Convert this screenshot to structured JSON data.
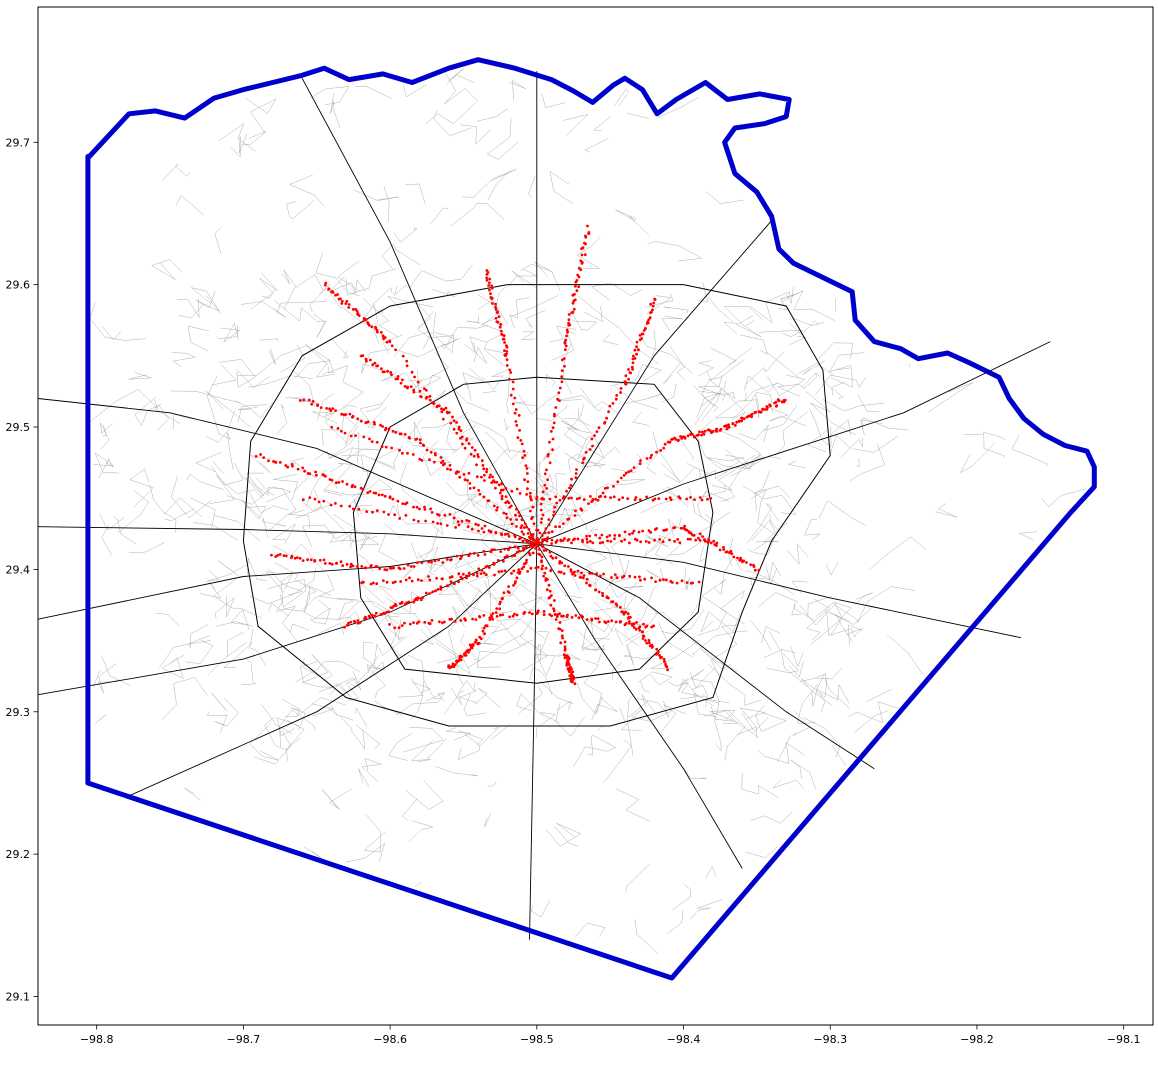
{
  "chart_data": {
    "type": "scatter",
    "title": "",
    "xlabel": "",
    "ylabel": "",
    "xlim": [
      -98.84,
      -98.08
    ],
    "ylim": [
      29.08,
      29.795
    ],
    "x_ticks": [
      -98.8,
      -98.7,
      -98.6,
      -98.5,
      -98.4,
      -98.3,
      -98.2,
      -98.1
    ],
    "x_tick_labels": [
      "−98.8",
      "−98.7",
      "−98.6",
      "−98.5",
      "−98.4",
      "−98.3",
      "−98.2",
      "−98.1"
    ],
    "y_ticks": [
      29.1,
      29.2,
      29.3,
      29.4,
      29.5,
      29.6,
      29.7
    ],
    "y_tick_labels": [
      "29.1",
      "29.2",
      "29.3",
      "29.4",
      "29.5",
      "29.6",
      "29.7"
    ],
    "grid": false,
    "colors": {
      "county_boundary": "#0000cc",
      "road_network": "#000000",
      "minor_roads": "#9a9a9a",
      "points": "#ff0000"
    },
    "boundary": [
      [
        -98.805,
        29.69
      ],
      [
        -98.778,
        29.72
      ],
      [
        -98.76,
        29.722
      ],
      [
        -98.74,
        29.717
      ],
      [
        -98.72,
        29.731
      ],
      [
        -98.7,
        29.737
      ],
      [
        -98.68,
        29.742
      ],
      [
        -98.66,
        29.747
      ],
      [
        -98.645,
        29.752
      ],
      [
        -98.628,
        29.744
      ],
      [
        -98.605,
        29.748
      ],
      [
        -98.585,
        29.742
      ],
      [
        -98.56,
        29.752
      ],
      [
        -98.54,
        29.758
      ],
      [
        -98.515,
        29.752
      ],
      [
        -98.49,
        29.744
      ],
      [
        -98.475,
        29.736
      ],
      [
        -98.462,
        29.728
      ],
      [
        -98.448,
        29.74
      ],
      [
        -98.44,
        29.745
      ],
      [
        -98.428,
        29.737
      ],
      [
        -98.418,
        29.72
      ],
      [
        -98.405,
        29.73
      ],
      [
        -98.385,
        29.742
      ],
      [
        -98.37,
        29.73
      ],
      [
        -98.348,
        29.734
      ],
      [
        -98.328,
        29.73
      ],
      [
        -98.33,
        29.718
      ],
      [
        -98.345,
        29.713
      ],
      [
        -98.365,
        29.71
      ],
      [
        -98.372,
        29.7
      ],
      [
        -98.365,
        29.678
      ],
      [
        -98.35,
        29.665
      ],
      [
        -98.34,
        29.648
      ],
      [
        -98.335,
        29.625
      ],
      [
        -98.325,
        29.615
      ],
      [
        -98.305,
        29.605
      ],
      [
        -98.285,
        29.595
      ],
      [
        -98.283,
        29.575
      ],
      [
        -98.27,
        29.56
      ],
      [
        -98.252,
        29.555
      ],
      [
        -98.24,
        29.548
      ],
      [
        -98.22,
        29.552
      ],
      [
        -98.205,
        29.545
      ],
      [
        -98.185,
        29.535
      ],
      [
        -98.178,
        29.52
      ],
      [
        -98.168,
        29.506
      ],
      [
        -98.155,
        29.495
      ],
      [
        -98.14,
        29.487
      ],
      [
        -98.125,
        29.483
      ],
      [
        -98.12,
        29.472
      ],
      [
        -98.12,
        29.458
      ],
      [
        -98.136,
        29.44
      ],
      [
        -98.408,
        29.113
      ],
      [
        -98.806,
        29.25
      ],
      [
        -98.806,
        29.69
      ]
    ],
    "major_roads": [
      [
        [
          -98.84,
          29.312
        ],
        [
          -98.7,
          29.337
        ],
        [
          -98.6,
          29.37
        ],
        [
          -98.5,
          29.418
        ],
        [
          -98.4,
          29.46
        ],
        [
          -98.25,
          29.51
        ],
        [
          -98.15,
          29.56
        ]
      ],
      [
        [
          -98.84,
          29.365
        ],
        [
          -98.7,
          29.395
        ],
        [
          -98.6,
          29.402
        ],
        [
          -98.5,
          29.418
        ],
        [
          -98.4,
          29.405
        ],
        [
          -98.3,
          29.38
        ],
        [
          -98.17,
          29.352
        ]
      ],
      [
        [
          -98.84,
          29.52
        ],
        [
          -98.75,
          29.51
        ],
        [
          -98.65,
          29.485
        ],
        [
          -98.5,
          29.418
        ]
      ],
      [
        [
          -98.84,
          29.43
        ],
        [
          -98.7,
          29.428
        ],
        [
          -98.6,
          29.425
        ],
        [
          -98.5,
          29.418
        ]
      ],
      [
        [
          -98.66,
          29.745
        ],
        [
          -98.6,
          29.63
        ],
        [
          -98.55,
          29.51
        ],
        [
          -98.5,
          29.418
        ]
      ],
      [
        [
          -98.5,
          29.75
        ],
        [
          -98.5,
          29.55
        ],
        [
          -98.5,
          29.418
        ],
        [
          -98.502,
          29.3
        ],
        [
          -98.505,
          29.14
        ]
      ],
      [
        [
          -98.34,
          29.645
        ],
        [
          -98.42,
          29.55
        ],
        [
          -98.5,
          29.418
        ]
      ],
      [
        [
          -98.78,
          29.24
        ],
        [
          -98.65,
          29.3
        ],
        [
          -98.56,
          29.36
        ],
        [
          -98.5,
          29.418
        ]
      ],
      [
        [
          -98.5,
          29.418
        ],
        [
          -98.46,
          29.35
        ],
        [
          -98.4,
          29.26
        ],
        [
          -98.36,
          29.19
        ]
      ],
      [
        [
          -98.5,
          29.418
        ],
        [
          -98.43,
          29.38
        ],
        [
          -98.33,
          29.3
        ],
        [
          -98.27,
          29.26
        ]
      ]
    ],
    "loop_1604": [
      [
        -98.52,
        29.6
      ],
      [
        -98.4,
        29.6
      ],
      [
        -98.33,
        29.585
      ],
      [
        -98.305,
        29.54
      ],
      [
        -98.3,
        29.48
      ],
      [
        -98.34,
        29.42
      ],
      [
        -98.36,
        29.37
      ],
      [
        -98.38,
        29.31
      ],
      [
        -98.45,
        29.29
      ],
      [
        -98.56,
        29.29
      ],
      [
        -98.63,
        29.31
      ],
      [
        -98.69,
        29.36
      ],
      [
        -98.7,
        29.42
      ],
      [
        -98.695,
        29.49
      ],
      [
        -98.66,
        29.55
      ],
      [
        -98.6,
        29.585
      ],
      [
        -98.52,
        29.6
      ]
    ],
    "loop_410": [
      [
        -98.5,
        29.535
      ],
      [
        -98.42,
        29.53
      ],
      [
        -98.39,
        29.49
      ],
      [
        -98.38,
        29.44
      ],
      [
        -98.39,
        29.37
      ],
      [
        -98.43,
        29.33
      ],
      [
        -98.5,
        29.32
      ],
      [
        -98.59,
        29.33
      ],
      [
        -98.62,
        29.38
      ],
      [
        -98.625,
        29.44
      ],
      [
        -98.6,
        29.5
      ],
      [
        -98.55,
        29.53
      ],
      [
        -98.5,
        29.535
      ]
    ],
    "point_routes": [
      [
        [
          -98.5,
          29.418
        ],
        [
          -98.6,
          29.56
        ],
        [
          -98.645,
          29.6
        ]
      ],
      [
        [
          -98.5,
          29.418
        ],
        [
          -98.52,
          29.55
        ],
        [
          -98.535,
          29.61
        ]
      ],
      [
        [
          -98.5,
          29.418
        ],
        [
          -98.48,
          29.56
        ],
        [
          -98.465,
          29.64
        ]
      ],
      [
        [
          -98.5,
          29.418
        ],
        [
          -98.44,
          29.53
        ],
        [
          -98.42,
          29.59
        ]
      ],
      [
        [
          -98.5,
          29.418
        ],
        [
          -98.41,
          29.49
        ],
        [
          -98.37,
          29.5
        ],
        [
          -98.33,
          29.52
        ]
      ],
      [
        [
          -98.5,
          29.418
        ],
        [
          -98.4,
          29.43
        ],
        [
          -98.35,
          29.4
        ]
      ],
      [
        [
          -98.5,
          29.418
        ],
        [
          -98.44,
          29.37
        ],
        [
          -98.41,
          29.33
        ]
      ],
      [
        [
          -98.5,
          29.418
        ],
        [
          -98.48,
          29.34
        ],
        [
          -98.475,
          29.32
        ]
      ],
      [
        [
          -98.5,
          29.418
        ],
        [
          -98.54,
          29.35
        ],
        [
          -98.56,
          29.33
        ]
      ],
      [
        [
          -98.5,
          29.418
        ],
        [
          -98.58,
          29.38
        ],
        [
          -98.63,
          29.36
        ]
      ],
      [
        [
          -98.5,
          29.418
        ],
        [
          -98.6,
          29.4
        ],
        [
          -98.68,
          29.41
        ]
      ],
      [
        [
          -98.5,
          29.418
        ],
        [
          -98.6,
          29.45
        ],
        [
          -98.69,
          29.48
        ]
      ],
      [
        [
          -98.5,
          29.418
        ],
        [
          -98.58,
          29.49
        ],
        [
          -98.66,
          29.52
        ]
      ],
      [
        [
          -98.5,
          29.418
        ],
        [
          -98.56,
          29.51
        ],
        [
          -98.62,
          29.55
        ]
      ],
      [
        [
          -98.64,
          29.5
        ],
        [
          -98.5,
          29.45
        ],
        [
          -98.38,
          29.45
        ]
      ],
      [
        [
          -98.66,
          29.45
        ],
        [
          -98.5,
          29.42
        ],
        [
          -98.38,
          29.42
        ]
      ],
      [
        [
          -98.62,
          29.39
        ],
        [
          -98.5,
          29.4
        ],
        [
          -98.39,
          29.39
        ]
      ],
      [
        [
          -98.6,
          29.36
        ],
        [
          -98.5,
          29.37
        ],
        [
          -98.42,
          29.36
        ]
      ]
    ]
  }
}
